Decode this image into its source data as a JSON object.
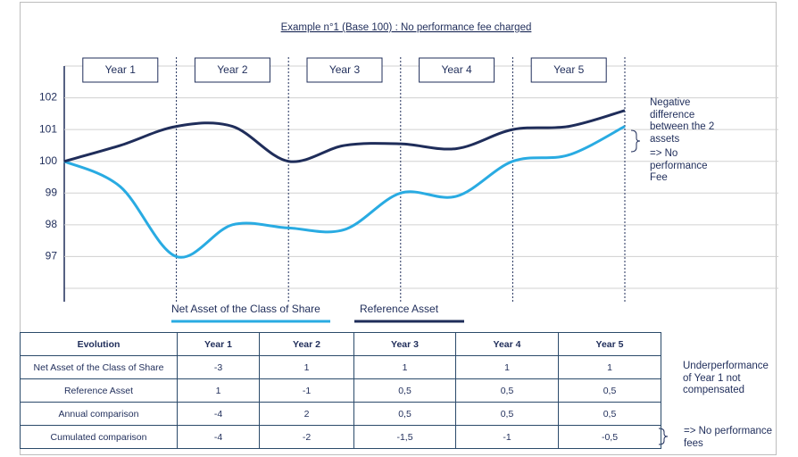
{
  "chart_data": {
    "type": "line",
    "title": "Example  n°1 (Base 100) : No performance fee charged",
    "categories": [
      "Year 1",
      "Year 2",
      "Year 3",
      "Year 4",
      "Year 5"
    ],
    "x": [
      0,
      0.5,
      1,
      1.5,
      2,
      2.5,
      3,
      3.5,
      4,
      4.5,
      5
    ],
    "xlim": [
      0,
      5
    ],
    "ylim": [
      96,
      103
    ],
    "yticks": [
      97,
      98,
      99,
      100,
      101,
      102
    ],
    "grid": true,
    "series": [
      {
        "name": "Net Asset of the Class of Share",
        "color": "#29abe2",
        "values": [
          100,
          99.2,
          97.0,
          98.0,
          97.9,
          97.85,
          99.0,
          98.9,
          100.0,
          100.2,
          101.1
        ]
      },
      {
        "name": "Reference Asset",
        "color": "#1f2d5a",
        "values": [
          100,
          100.5,
          101.1,
          101.1,
          100.0,
          100.5,
          100.55,
          100.4,
          101.0,
          101.1,
          101.6
        ]
      }
    ]
  },
  "notes": {
    "difference": [
      "Negative",
      "difference",
      "between the 2",
      "assets"
    ],
    "conclusion": [
      "=> No",
      "performance",
      "Fee"
    ],
    "underperformance": [
      "Underperformance",
      "of Year 1 not",
      "compensated"
    ],
    "fees": [
      "=> No performance",
      "fees"
    ]
  },
  "table": {
    "header": [
      "Evolution",
      "Year 1",
      "Year 2",
      "Year 3",
      "Year 4",
      "Year 5"
    ],
    "rows": [
      [
        "Net Asset of the Class of Share",
        "-3",
        "1",
        "1",
        "1",
        "1"
      ],
      [
        "Reference Asset",
        "1",
        "-1",
        "0,5",
        "0,5",
        "0,5"
      ],
      [
        "Annual comparison",
        "-4",
        "2",
        "0,5",
        "0,5",
        "0,5"
      ],
      [
        "Cumulated comparison",
        "-4",
        "-2",
        "-1,5",
        "-1",
        "-0,5"
      ]
    ]
  }
}
